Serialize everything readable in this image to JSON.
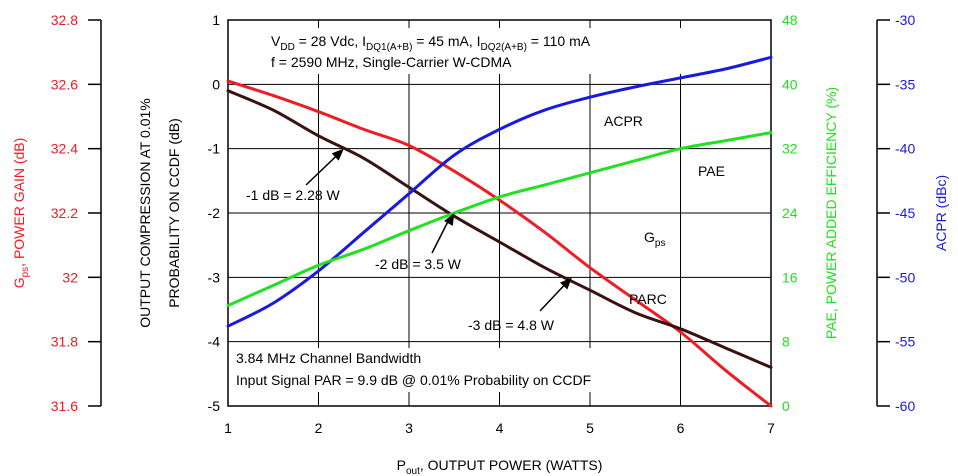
{
  "chart_data": {
    "type": "line",
    "x_axis": {
      "label": "P",
      "label_sub": "out",
      "label_rest": ", OUTPUT POWER (WATTS)",
      "range": [
        1,
        7
      ],
      "ticks": [
        "1",
        "2",
        "3",
        "4",
        "5",
        "6",
        "7"
      ]
    },
    "left_axes": [
      {
        "id": "gps",
        "color": "#ee1c24",
        "range": [
          31.6,
          32.8
        ],
        "ticks": [
          "31.6",
          "31.8",
          "32",
          "32.2",
          "32.4",
          "32.6",
          "32.8"
        ],
        "label_main": "G",
        "label_sub": "ps",
        "label_rest": ", POWER GAIN (dB)"
      },
      {
        "id": "parc",
        "color": "#000000",
        "range": [
          -5,
          1
        ],
        "ticks": [
          "-5",
          "-4",
          "-3",
          "-2",
          "-1",
          "0",
          "1"
        ],
        "label_line1": "OUTPUT COMPRESSION AT 0.01%",
        "label_line2": "PROBABILITY ON CCDF (dB)"
      }
    ],
    "right_axes": [
      {
        "id": "pae",
        "color": "#22e022",
        "range": [
          0,
          48
        ],
        "ticks": [
          "0",
          "8",
          "16",
          "24",
          "32",
          "40",
          "48"
        ],
        "label": "PAE, POWER ADDED EFFICIENCY (%)"
      },
      {
        "id": "acpr",
        "color": "#1a1adc",
        "range": [
          -60,
          -30
        ],
        "ticks": [
          "-60",
          "-55",
          "-50",
          "-45",
          "-40",
          "-35",
          "-30"
        ],
        "label": "ACPR (dBc)"
      }
    ],
    "series": [
      {
        "name": "G",
        "name_sub": "ps",
        "axis": "gps",
        "color": "#ee1c24",
        "x": [
          1,
          1.5,
          2,
          2.5,
          3,
          3.5,
          4,
          4.5,
          5,
          5.5,
          6,
          6.5,
          7
        ],
        "y": [
          32.61,
          32.565,
          32.515,
          32.46,
          32.41,
          32.33,
          32.24,
          32.14,
          32.03,
          31.93,
          31.83,
          31.71,
          31.6
        ]
      },
      {
        "name": "PARC",
        "axis": "parc",
        "color": "#3a1212",
        "x": [
          1,
          1.5,
          2,
          2.5,
          3,
          3.5,
          4,
          4.5,
          5,
          5.5,
          6,
          6.5,
          7
        ],
        "y": [
          -0.1,
          -0.4,
          -0.8,
          -1.15,
          -1.6,
          -2.05,
          -2.45,
          -2.85,
          -3.2,
          -3.55,
          -3.8,
          -4.1,
          -4.4
        ]
      },
      {
        "name": "ACPR",
        "axis": "acpr",
        "color": "#1a1adc",
        "x": [
          1,
          1.5,
          2,
          2.5,
          3,
          3.5,
          4,
          4.5,
          5,
          5.5,
          6,
          6.5,
          7
        ],
        "y": [
          -53.8,
          -52,
          -49.5,
          -46.5,
          -43.5,
          -40.5,
          -38.5,
          -37,
          -36,
          -35.2,
          -34.5,
          -33.8,
          -32.9
        ]
      },
      {
        "name": "PAE",
        "axis": "pae",
        "color": "#22e022",
        "x": [
          1,
          1.5,
          2,
          2.5,
          3,
          3.5,
          4,
          4.5,
          5,
          5.5,
          6,
          6.5,
          7
        ],
        "y": [
          12.5,
          15,
          17.5,
          19.5,
          21.8,
          24,
          26,
          27.5,
          29,
          30.5,
          32,
          33,
          34
        ]
      }
    ],
    "annotations": [
      {
        "text": "-1 dB = 2.28 W",
        "x": 2.28,
        "y": -1
      },
      {
        "text": "-2 dB = 3.5 W",
        "x": 3.5,
        "y": -2
      },
      {
        "text": "-3 dB = 4.8 W",
        "x": 4.8,
        "y": -3
      }
    ],
    "conditions": {
      "line1": "V_DD = 28 Vdc, I_DQ1(A+B) = 45 mA, I_DQ2(A+B) = 110 mA",
      "line2": "f = 2590 MHz, Single-Carrier W-CDMA"
    },
    "footnote": {
      "line1": "3.84 MHz Channel Bandwidth",
      "line2": "Input Signal PAR = 9.9 dB @ 0.01% Probability on CCDF"
    },
    "grid": true
  }
}
